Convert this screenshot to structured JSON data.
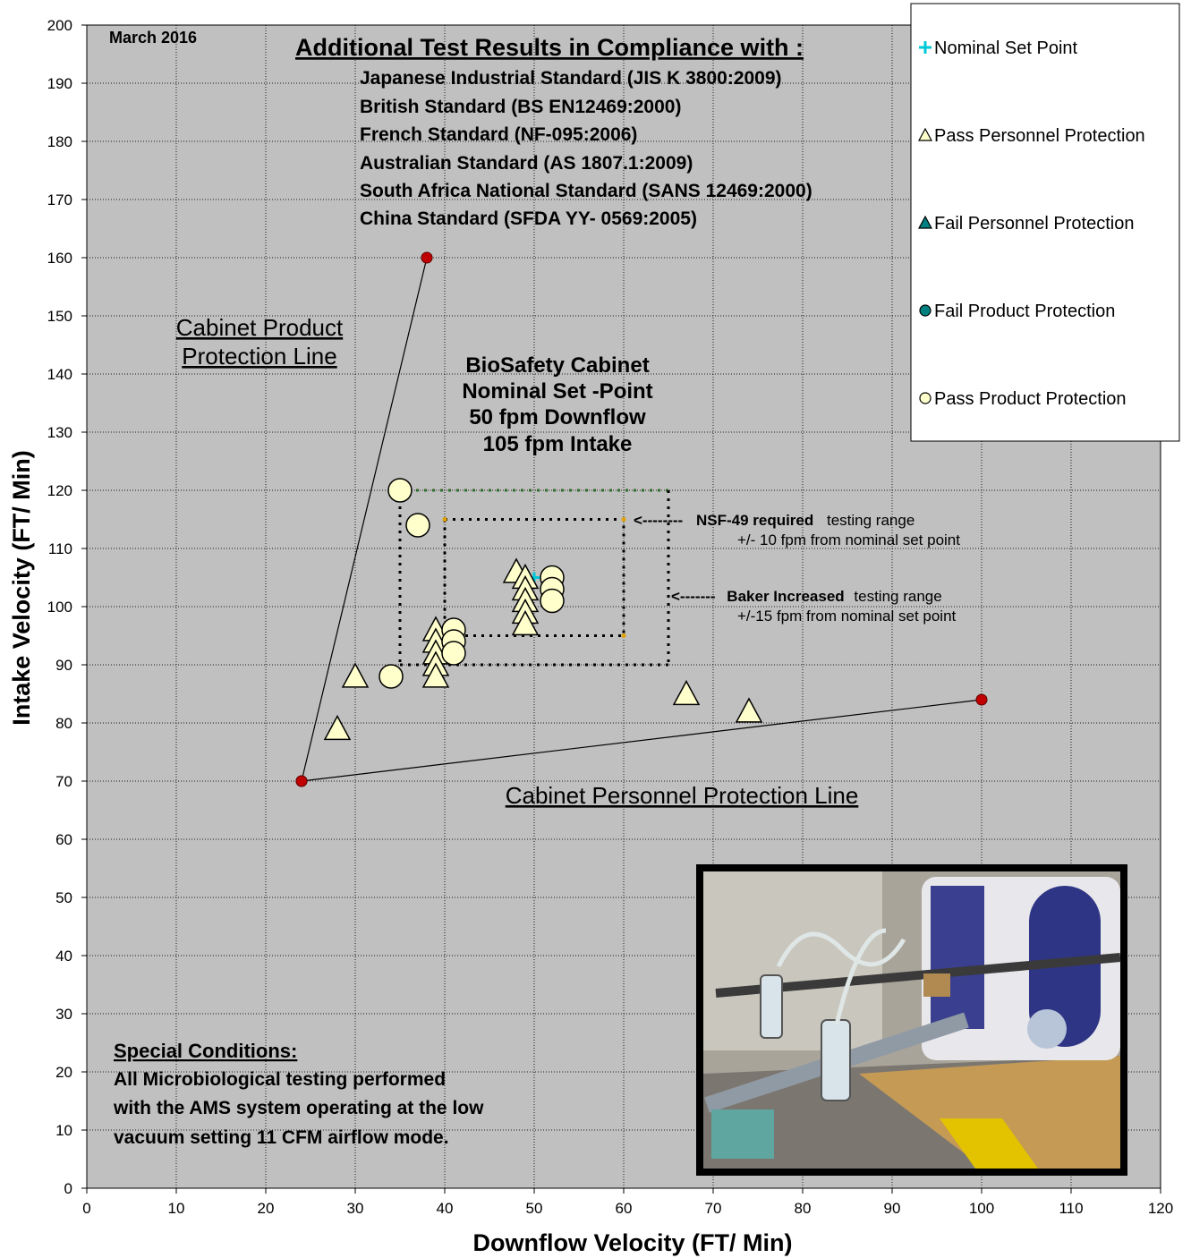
{
  "chart_data": {
    "type": "scatter",
    "xlabel": "Downflow Velocity (FT/ Min)",
    "ylabel": "Intake Velocity (FT/ Min)",
    "xlim": [
      0,
      120
    ],
    "ylim": [
      0,
      200
    ],
    "x_ticks": [
      "0",
      "10",
      "20",
      "30",
      "40",
      "50",
      "60",
      "70",
      "80",
      "90",
      "100",
      "110",
      "120"
    ],
    "y_ticks": [
      "0",
      "10",
      "20",
      "30",
      "40",
      "50",
      "60",
      "70",
      "80",
      "90",
      "100",
      "110",
      "120",
      "130",
      "140",
      "150",
      "160",
      "170",
      "180",
      "190",
      "200"
    ],
    "grid": true,
    "legend_position": "top-right",
    "colors": {
      "plot_bg": "#c0c0c0",
      "marker_fill": "#ffffcc",
      "line_end": "#c00000",
      "nominal": "#00c8d8",
      "fail_fill": "#008080",
      "box_line": "#000000",
      "outer_top_line": "#2e6b2e"
    },
    "series": [
      {
        "name": "Nominal Set Point",
        "marker": "plus",
        "points": [
          [
            50,
            105
          ]
        ]
      },
      {
        "name": "Pass Personnel Protection",
        "marker": "triangle",
        "points": [
          [
            28,
            79
          ],
          [
            30,
            88
          ],
          [
            39,
            96
          ],
          [
            39,
            94
          ],
          [
            39,
            92
          ],
          [
            39,
            90
          ],
          [
            39,
            88
          ],
          [
            48,
            106
          ],
          [
            49,
            105
          ],
          [
            49,
            103
          ],
          [
            49,
            101
          ],
          [
            49,
            99
          ],
          [
            49,
            97
          ],
          [
            67,
            85
          ],
          [
            74,
            82
          ]
        ]
      },
      {
        "name": "Fail Personnel Protection",
        "marker": "triangle",
        "points": []
      },
      {
        "name": "Fail Product Protection",
        "marker": "circle",
        "points": []
      },
      {
        "name": "Pass Product Protection",
        "marker": "circle",
        "points": [
          [
            35,
            120
          ],
          [
            37,
            114
          ],
          [
            34,
            88
          ],
          [
            41,
            96
          ],
          [
            41,
            94
          ],
          [
            41,
            92
          ],
          [
            52,
            105
          ],
          [
            52,
            103
          ],
          [
            52,
            101
          ]
        ]
      }
    ],
    "protection_lines": {
      "product": {
        "label_line1": "Cabinet Product",
        "label_line2": "Protection Line",
        "points": [
          [
            24,
            70
          ],
          [
            38,
            160
          ]
        ]
      },
      "personnel": {
        "label": "Cabinet Personnel Protection Line",
        "points": [
          [
            24,
            70
          ],
          [
            100,
            84
          ]
        ]
      }
    },
    "testing_ranges": {
      "nsf": {
        "x": [
          40,
          60
        ],
        "y": [
          95,
          115
        ]
      },
      "baker": {
        "x": [
          35,
          65
        ],
        "y": [
          90,
          120
        ]
      }
    },
    "annotations": {
      "date": "March 2016",
      "compliance_title": "Additional Test Results in Compliance with :",
      "compliance_lines": [
        "Japanese Industrial Standard (JIS K 3800:2009)",
        "British Standard (BS EN12469:2000)",
        "French Standard (NF-095:2006)",
        "Australian Standard (AS 1807.1:2009)",
        "South Africa National Standard (SANS 12469:2000)",
        "China Standard (SFDA YY- 0569:2005)"
      ],
      "nominal_block": [
        "BioSafety Cabinet",
        "Nominal Set -Point",
        "50 fpm Downflow",
        "105 fpm Intake"
      ],
      "nsf_arrow": "<--------",
      "nsf_bold": "NSF-49 required",
      "nsf_rest": "testing range",
      "nsf_line2": "+/- 10 fpm from nominal set point",
      "baker_arrow": "<-------",
      "baker_bold": "Baker Increased",
      "baker_rest": "testing range",
      "baker_line2": "+/-15 fpm from nominal set point",
      "special_title": "Special Conditions:",
      "special_lines": [
        "All Microbiological testing  performed",
        "with the AMS system operating at the low",
        "vacuum setting 11 CFM airflow mode."
      ]
    }
  }
}
